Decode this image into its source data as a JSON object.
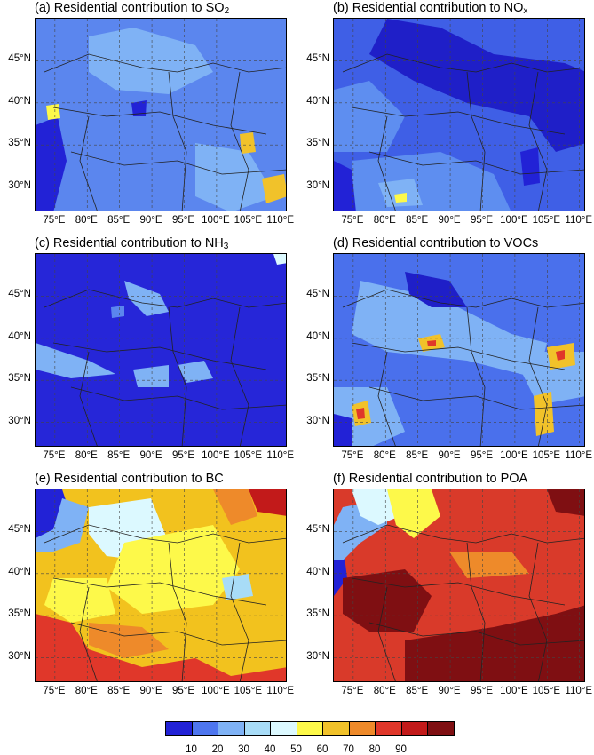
{
  "panels": [
    {
      "id": "a",
      "title_main": "(a) Residential contribution to SO",
      "title_sub": "2",
      "base": "#5b86ee"
    },
    {
      "id": "b",
      "title_main": "(b) Residential contribution to NO",
      "title_sub": "x",
      "base": "#3f5fe6"
    },
    {
      "id": "c",
      "title_main": "(c) Residential contribution to NH",
      "title_sub": "3",
      "base": "#2626d8"
    },
    {
      "id": "d",
      "title_main": "(d) Residential contribution to VOCs",
      "title_sub": "",
      "base": "#4a70ec"
    },
    {
      "id": "e",
      "title_main": "(e) Residential contribution to BC",
      "title_sub": "",
      "base": "#f2c21e"
    },
    {
      "id": "f",
      "title_main": "(f) Residential contribution to POA",
      "title_sub": "",
      "base": "#d93a2a"
    }
  ],
  "lat_labels": [
    "45°N",
    "40°N",
    "35°N",
    "30°N"
  ],
  "lon_labels": [
    "75°E",
    "80°E",
    "85°E",
    "90°E",
    "95°E",
    "100°E",
    "105°E",
    "110°E"
  ],
  "colorbar": {
    "colors": [
      "#2222d6",
      "#4e76ef",
      "#7fb2f5",
      "#a8dcf7",
      "#dcf9ff",
      "#fdf94a",
      "#f1c22a",
      "#ee8a2a",
      "#e0372a",
      "#c21a1a",
      "#7f0f12"
    ],
    "labels": [
      "10",
      "20",
      "30",
      "40",
      "50",
      "60",
      "70",
      "80",
      "90"
    ]
  }
}
